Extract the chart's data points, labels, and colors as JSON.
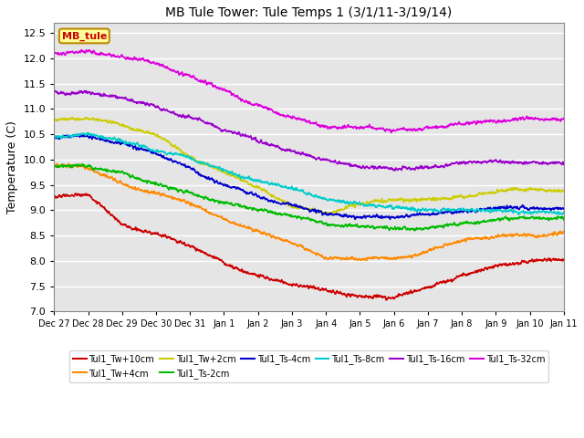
{
  "title": "MB Tule Tower: Tule Temps 1 (3/1/11-3/19/14)",
  "ylabel": "Temperature (C)",
  "ylim": [
    7.0,
    12.7
  ],
  "yticks": [
    7.0,
    7.5,
    8.0,
    8.5,
    9.0,
    9.5,
    10.0,
    10.5,
    11.0,
    11.5,
    12.0,
    12.5
  ],
  "bg_color": "#e5e5e5",
  "legend_box_facecolor": "#ffff99",
  "legend_box_edgecolor": "#bb8800",
  "series_order": [
    "Tul1_Tw+10cm",
    "Tul1_Tw+4cm",
    "Tul1_Tw+2cm",
    "Tul1_Ts-2cm",
    "Tul1_Ts-4cm",
    "Tul1_Ts-8cm",
    "Tul1_Ts-16cm",
    "Tul1_Ts-32cm"
  ],
  "series": {
    "Tul1_Tw+10cm": {
      "color": "#cc0000",
      "lw": 1.2,
      "waypoints": [
        [
          0,
          9.28
        ],
        [
          1,
          9.3
        ],
        [
          2,
          8.7
        ],
        [
          3,
          8.5
        ],
        [
          4,
          8.25
        ],
        [
          5,
          7.95
        ],
        [
          6,
          7.65
        ],
        [
          7,
          7.5
        ],
        [
          8,
          7.45
        ],
        [
          9,
          7.35
        ],
        [
          10,
          7.35
        ],
        [
          11,
          7.5
        ],
        [
          12,
          7.7
        ],
        [
          13,
          7.95
        ],
        [
          14,
          8.0
        ],
        [
          15,
          8.0
        ]
      ]
    },
    "Tul1_Tw+4cm": {
      "color": "#ff8800",
      "lw": 1.2,
      "waypoints": [
        [
          0,
          9.9
        ],
        [
          1,
          9.85
        ],
        [
          2,
          9.5
        ],
        [
          3,
          9.3
        ],
        [
          4,
          9.1
        ],
        [
          5,
          8.8
        ],
        [
          6,
          8.55
        ],
        [
          7,
          8.35
        ],
        [
          8,
          8.1
        ],
        [
          9,
          8.05
        ],
        [
          10,
          8.05
        ],
        [
          11,
          8.2
        ],
        [
          12,
          8.4
        ],
        [
          13,
          8.5
        ],
        [
          14,
          8.55
        ],
        [
          15,
          8.55
        ]
      ]
    },
    "Tul1_Tw+2cm": {
      "color": "#cccc00",
      "lw": 1.2,
      "waypoints": [
        [
          0,
          10.78
        ],
        [
          1,
          10.85
        ],
        [
          2,
          10.7
        ],
        [
          3,
          10.5
        ],
        [
          4,
          10.15
        ],
        [
          5,
          9.8
        ],
        [
          6,
          9.5
        ],
        [
          7,
          9.1
        ],
        [
          8,
          8.95
        ],
        [
          9,
          9.1
        ],
        [
          10,
          9.15
        ],
        [
          11,
          9.2
        ],
        [
          12,
          9.25
        ],
        [
          13,
          9.3
        ],
        [
          14,
          9.32
        ],
        [
          15,
          9.3
        ]
      ]
    },
    "Tul1_Ts-2cm": {
      "color": "#00bb00",
      "lw": 1.2,
      "waypoints": [
        [
          0,
          9.95
        ],
        [
          1,
          9.98
        ],
        [
          2,
          9.85
        ],
        [
          3,
          9.65
        ],
        [
          4,
          9.45
        ],
        [
          5,
          9.2
        ],
        [
          6,
          9.05
        ],
        [
          7,
          8.9
        ],
        [
          8,
          8.75
        ],
        [
          9,
          8.65
        ],
        [
          10,
          8.6
        ],
        [
          11,
          8.62
        ],
        [
          12,
          8.65
        ],
        [
          13,
          8.65
        ],
        [
          14,
          8.65
        ],
        [
          15,
          8.65
        ]
      ]
    },
    "Tul1_Ts-4cm": {
      "color": "#0000cc",
      "lw": 1.2,
      "waypoints": [
        [
          0,
          10.38
        ],
        [
          1,
          10.4
        ],
        [
          2,
          10.3
        ],
        [
          3,
          10.1
        ],
        [
          4,
          9.85
        ],
        [
          5,
          9.55
        ],
        [
          6,
          9.35
        ],
        [
          7,
          9.15
        ],
        [
          8,
          8.95
        ],
        [
          9,
          8.88
        ],
        [
          10,
          8.88
        ],
        [
          11,
          8.9
        ],
        [
          12,
          8.95
        ],
        [
          13,
          9.0
        ],
        [
          14,
          9.0
        ],
        [
          15,
          9.0
        ]
      ]
    },
    "Tul1_Ts-8cm": {
      "color": "#00cccc",
      "lw": 1.2,
      "waypoints": [
        [
          0,
          10.45
        ],
        [
          1,
          10.48
        ],
        [
          2,
          10.38
        ],
        [
          3,
          10.2
        ],
        [
          4,
          10.0
        ],
        [
          5,
          9.78
        ],
        [
          6,
          9.6
        ],
        [
          7,
          9.4
        ],
        [
          8,
          9.2
        ],
        [
          9,
          9.1
        ],
        [
          10,
          9.0
        ],
        [
          11,
          9.0
        ],
        [
          12,
          9.0
        ],
        [
          13,
          9.02
        ],
        [
          14,
          9.02
        ],
        [
          15,
          9.02
        ]
      ]
    },
    "Tul1_Ts-16cm": {
      "color": "#9900cc",
      "lw": 1.2,
      "waypoints": [
        [
          0,
          11.35
        ],
        [
          1,
          11.38
        ],
        [
          2,
          11.25
        ],
        [
          3,
          11.1
        ],
        [
          4,
          10.9
        ],
        [
          5,
          10.65
        ],
        [
          6,
          10.4
        ],
        [
          7,
          10.2
        ],
        [
          8,
          10.0
        ],
        [
          9,
          9.88
        ],
        [
          10,
          9.82
        ],
        [
          11,
          9.82
        ],
        [
          12,
          9.82
        ],
        [
          13,
          9.84
        ],
        [
          14,
          9.85
        ],
        [
          15,
          9.85
        ]
      ]
    },
    "Tul1_Ts-32cm": {
      "color": "#dd00dd",
      "lw": 1.2,
      "waypoints": [
        [
          0,
          12.2
        ],
        [
          1,
          12.22
        ],
        [
          2,
          12.08
        ],
        [
          3,
          11.88
        ],
        [
          4,
          11.65
        ],
        [
          5,
          11.4
        ],
        [
          6,
          11.1
        ],
        [
          7,
          10.85
        ],
        [
          8,
          10.65
        ],
        [
          9,
          10.6
        ],
        [
          10,
          10.55
        ],
        [
          11,
          10.58
        ],
        [
          12,
          10.65
        ],
        [
          13,
          10.72
        ],
        [
          14,
          10.75
        ],
        [
          15,
          10.75
        ]
      ]
    }
  },
  "x_tick_labels": [
    "Dec 27",
    "Dec 28",
    "Dec 29",
    "Dec 30",
    "Dec 31",
    "Jan 1",
    "Jan 2",
    "Jan 3",
    "Jan 4",
    "Jan 5",
    "Jan 6",
    "Jan 7",
    "Jan 8",
    "Jan 9",
    "Jan 10",
    "Jan 11"
  ],
  "n_points": 1600
}
